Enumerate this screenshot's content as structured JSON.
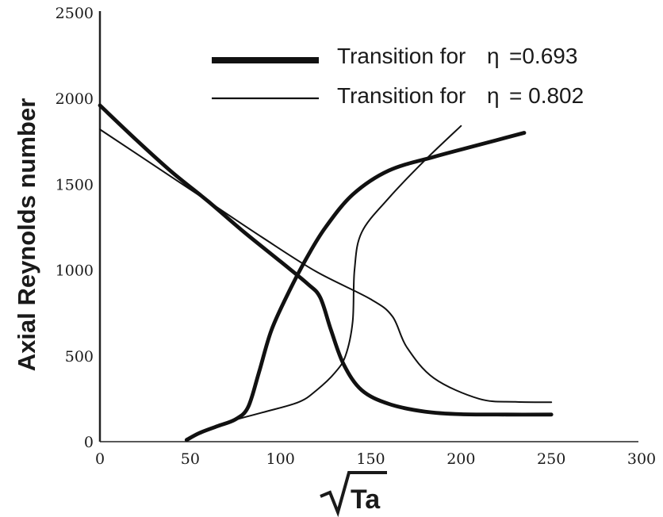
{
  "chart_data": {
    "type": "line",
    "title": "",
    "xlabel": "Ta",
    "xlabel_radical": "√",
    "ylabel": "Axial Reynolds number",
    "xlim": [
      0,
      300
    ],
    "ylim": [
      0,
      2500
    ],
    "x_ticks": [
      0,
      50,
      100,
      150,
      200,
      250,
      300
    ],
    "y_ticks": [
      0,
      500,
      1000,
      1500,
      2000,
      2500
    ],
    "grid": false,
    "legend": {
      "placement": "top-right",
      "symbol": "η",
      "entries": [
        {
          "prefix": "Transition for ",
          "value": "=0.693",
          "style": "thick"
        },
        {
          "prefix": "Transition for ",
          "value": "= 0.802",
          "style": "thin"
        }
      ]
    },
    "series": [
      {
        "style": "thick",
        "color": "#111111",
        "segments": [
          [
            [
              0,
              1960
            ],
            [
              20,
              1760
            ],
            [
              40,
              1570
            ],
            [
              60,
              1400
            ],
            [
              80,
              1220
            ],
            [
              100,
              1050
            ],
            [
              115,
              920
            ],
            [
              122,
              840
            ],
            [
              128,
              650
            ],
            [
              135,
              450
            ],
            [
              145,
              300
            ],
            [
              160,
              220
            ],
            [
              180,
              175
            ],
            [
              200,
              160
            ],
            [
              225,
              158
            ],
            [
              250,
              158
            ]
          ],
          [
            [
              48,
              10
            ],
            [
              55,
              50
            ],
            [
              65,
              90
            ],
            [
              75,
              130
            ],
            [
              82,
              200
            ],
            [
              88,
              400
            ],
            [
              95,
              650
            ],
            [
              105,
              880
            ],
            [
              115,
              1080
            ],
            [
              125,
              1250
            ],
            [
              140,
              1440
            ],
            [
              160,
              1580
            ],
            [
              185,
              1660
            ],
            [
              210,
              1730
            ],
            [
              235,
              1800
            ]
          ]
        ]
      },
      {
        "style": "thin",
        "color": "#111111",
        "segments": [
          [
            [
              0,
              1820
            ],
            [
              30,
              1610
            ],
            [
              60,
              1400
            ],
            [
              90,
              1190
            ],
            [
              120,
              990
            ],
            [
              150,
              830
            ],
            [
              162,
              730
            ],
            [
              170,
              550
            ],
            [
              185,
              370
            ],
            [
              210,
              250
            ],
            [
              230,
              232
            ],
            [
              250,
              230
            ]
          ],
          [
            [
              48,
              10
            ],
            [
              70,
              110
            ],
            [
              90,
              170
            ],
            [
              110,
              230
            ],
            [
              120,
              300
            ],
            [
              130,
              400
            ],
            [
              136,
              500
            ],
            [
              140,
              700
            ],
            [
              141,
              1000
            ],
            [
              145,
              1220
            ],
            [
              160,
              1420
            ],
            [
              180,
              1640
            ],
            [
              200,
              1840
            ]
          ]
        ]
      }
    ]
  }
}
